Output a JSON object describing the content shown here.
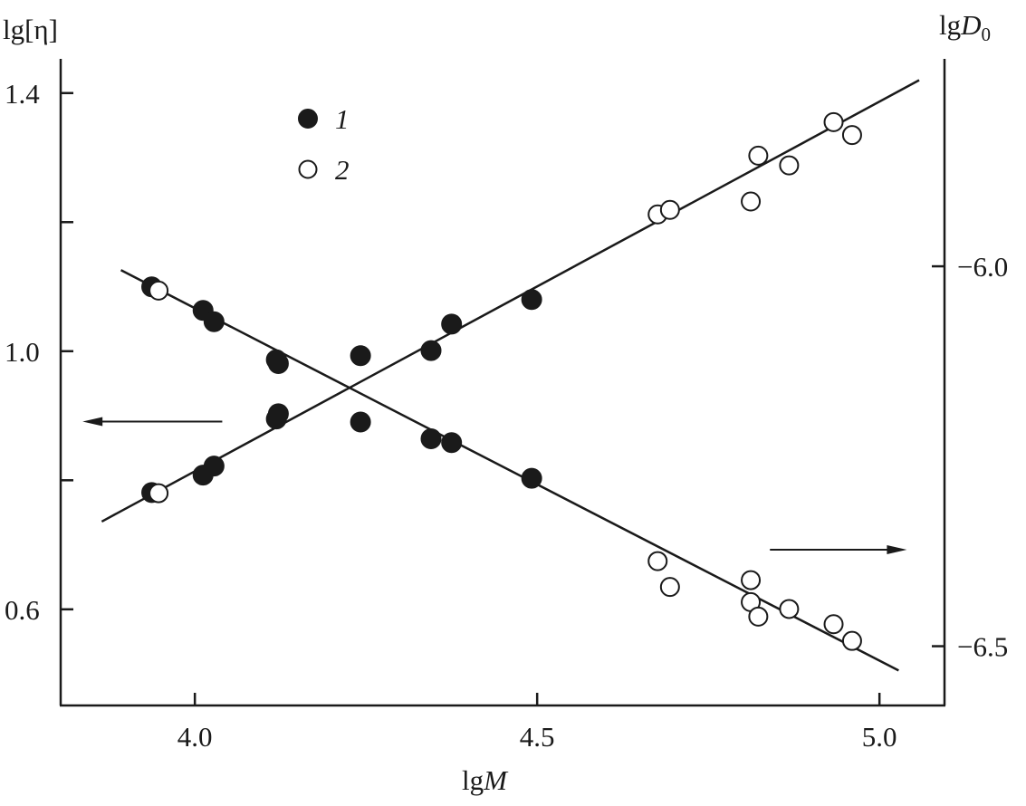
{
  "chart_data": {
    "type": "scatter",
    "title": "",
    "xlabel": "lgM",
    "xlabel_parts": [
      "lg",
      "M"
    ],
    "ylabel_left": "lg[η]",
    "ylabel_right": "lgD0",
    "ylabel_right_parts": [
      "lg",
      "D",
      "0"
    ],
    "xlim": [
      3.804,
      5.095
    ],
    "ylim_left": [
      0.451,
      1.453
    ],
    "ylim_right": [
      -6.578,
      -5.727
    ],
    "x_ticks": [
      "4.0",
      "4.5",
      "5.0"
    ],
    "x_tick_values": [
      4.0,
      4.5,
      5.0
    ],
    "y_left_ticks": [
      "1.4",
      "1.0",
      "0.6"
    ],
    "y_left_tick_values": [
      1.4,
      1.0,
      0.6
    ],
    "y_left_minor_tick_values": [
      1.2,
      0.8
    ],
    "y_right_ticks": [
      "−6.0",
      "−6.5"
    ],
    "y_right_tick_values": [
      -6.0,
      -6.5
    ],
    "grid": false,
    "legend": {
      "placement": "top-left",
      "entries": [
        {
          "label": "1",
          "marker": "filled-circle"
        },
        {
          "label": "2",
          "marker": "open-circle"
        }
      ]
    },
    "series": [
      {
        "name": "1",
        "axis": "left",
        "marker": "filled",
        "x": [
          3.937,
          4.012,
          4.028,
          4.119,
          4.122,
          4.242,
          4.345,
          4.375,
          4.492
        ],
        "y": [
          0.781,
          0.808,
          0.822,
          0.895,
          0.903,
          0.993,
          1.001,
          1.042,
          1.08
        ]
      },
      {
        "name": "2",
        "axis": "left",
        "marker": "open",
        "x": [
          3.947,
          4.676,
          4.694,
          4.812,
          4.823,
          4.868,
          4.933,
          4.96
        ],
        "y": [
          0.78,
          1.212,
          1.219,
          1.232,
          1.303,
          1.288,
          1.355,
          1.335
        ]
      },
      {
        "name": "1",
        "axis": "right",
        "marker": "filled",
        "x": [
          3.937,
          4.012,
          4.028,
          4.119,
          4.122,
          4.242,
          4.345,
          4.375,
          4.492
        ],
        "y": [
          -6.027,
          -6.058,
          -6.073,
          -6.123,
          -6.128,
          -6.205,
          -6.227,
          -6.232,
          -6.279
        ]
      },
      {
        "name": "2",
        "axis": "right",
        "marker": "open",
        "x": [
          3.947,
          4.676,
          4.694,
          4.812,
          4.812,
          4.823,
          4.868,
          4.933,
          4.96
        ],
        "y": [
          -6.032,
          -6.388,
          -6.422,
          -6.413,
          -6.442,
          -6.461,
          -6.451,
          -6.471,
          -6.493
        ]
      }
    ],
    "fit_lines": [
      {
        "axis": "left",
        "x": [
          3.864,
          5.058
        ],
        "y": [
          0.736,
          1.42
        ]
      },
      {
        "axis": "right",
        "x": [
          3.892,
          5.028
        ],
        "y": [
          -6.005,
          -6.532
        ]
      }
    ],
    "annotations": [
      {
        "type": "arrow",
        "direction": "left",
        "refers_to": "left axis",
        "x": [
          4.04,
          3.836
        ],
        "y_left": 0.891
      },
      {
        "type": "arrow",
        "direction": "right",
        "refers_to": "right axis",
        "x": [
          4.84,
          5.04
        ],
        "y_right": -6.373
      }
    ]
  }
}
